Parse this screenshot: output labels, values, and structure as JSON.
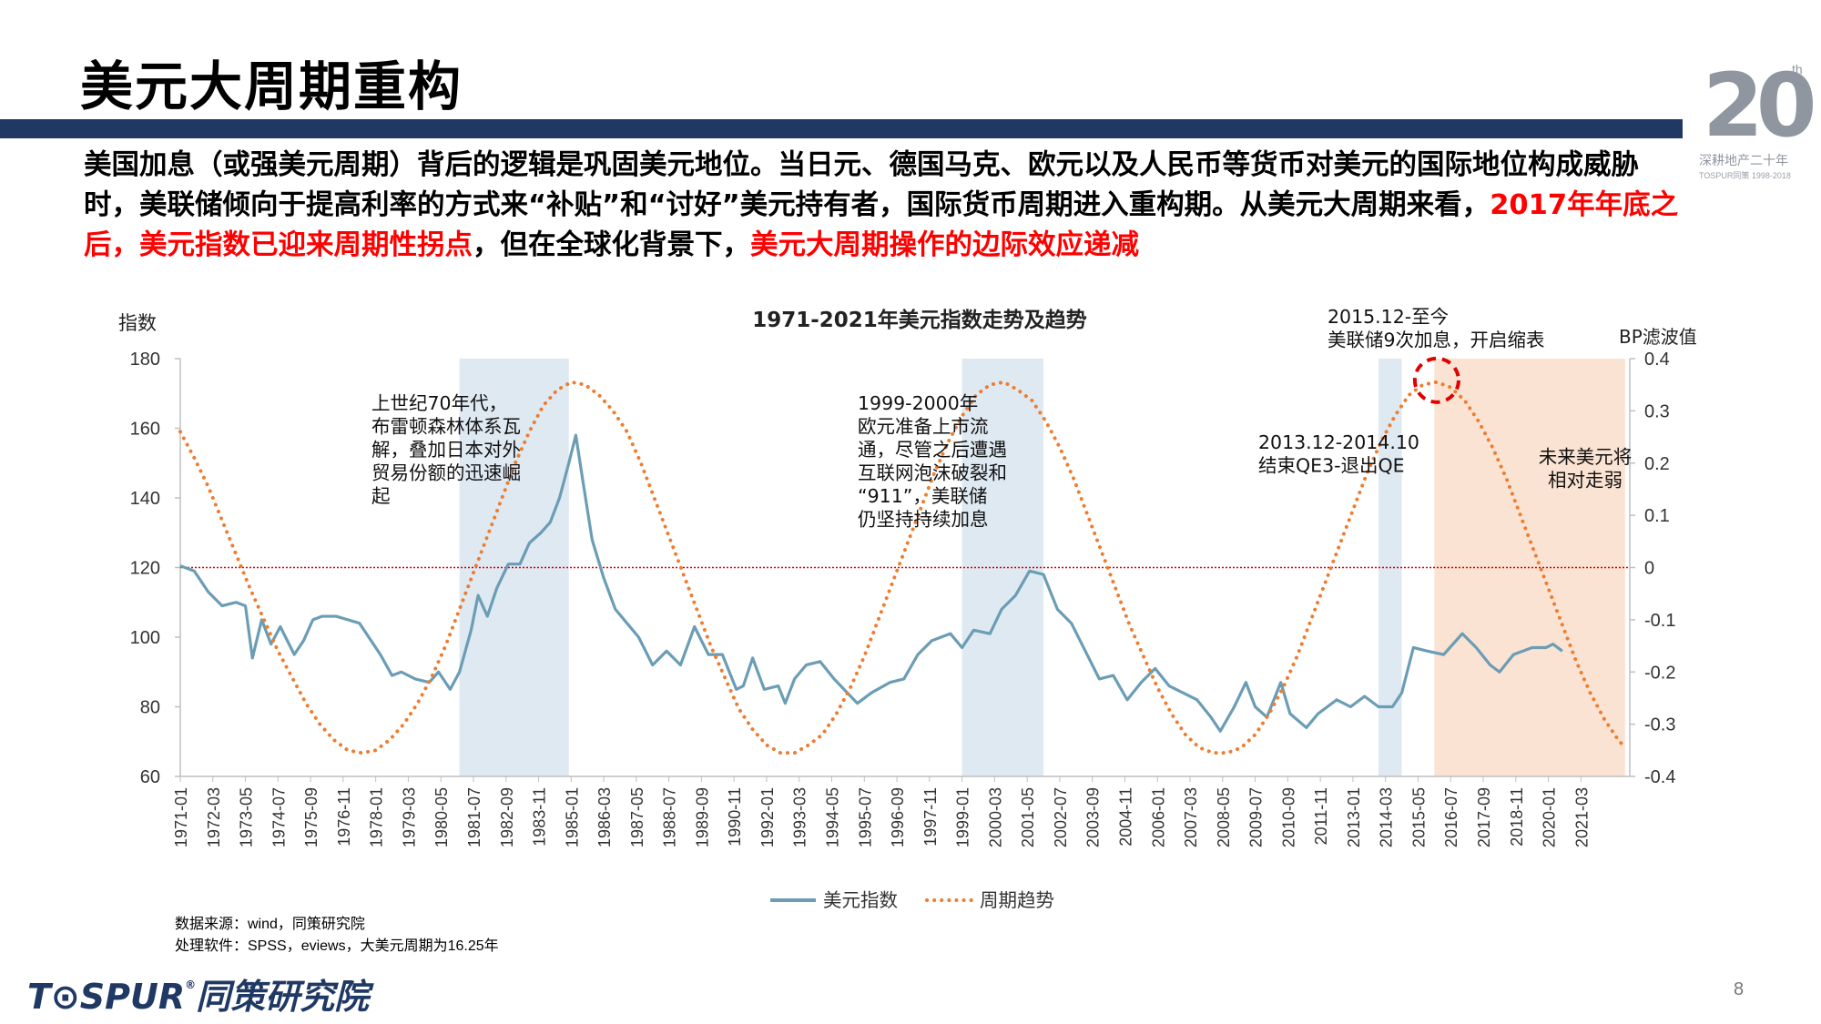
{
  "slide": {
    "title": "美元大周期重构",
    "page_number": "8"
  },
  "badge": {
    "number": "20",
    "suffix": "th",
    "caption": "深耕地产二十年",
    "subcaption": "TOSPUR同策 1998-2018"
  },
  "intro": {
    "part1": "美国加息（或强美元周期）背后的逻辑是巩固美元地位。当日元、德国马克、欧元以及人民币等货币对美元的国际地位构成威胁时，美联储倾向于提高利率的方式来“补贴”和“讨好”美元持有者，国际货币周期进入重构期。从美元大周期来看，",
    "highlight1": "2017年年底之后，美元指数已迎来周期性拐点",
    "part2": "，但在全球化背景下，",
    "highlight2": "美元大周期操作的边际效应递减"
  },
  "source": {
    "line1": "数据来源：wind，同策研究院",
    "line2": "处理软件：SPSS，eviews，大美元周期为16.25年"
  },
  "logo": {
    "brand": "T⊙SPUR",
    "mark": "®",
    "name": "同策研究院"
  },
  "colors": {
    "navy": "#1f3864",
    "highlight": "#ff0000",
    "index_line": "#6b9db5",
    "trend_line": "#ed7d31",
    "shade_blue": "#dfe9f2",
    "shade_peach": "#fbe3d3",
    "baseline": "#e00000"
  },
  "chart_data": {
    "type": "line",
    "title": "1971-2021年美元指数走势及趋势",
    "ylabel": "指数",
    "y2label": "BP滤波值",
    "ylim": [
      60,
      180
    ],
    "yticks": [
      60,
      80,
      100,
      120,
      140,
      160,
      180
    ],
    "y2lim": [
      -0.4,
      0.4
    ],
    "y2ticks": [
      "-0.4",
      "-0.3",
      "-0.2",
      "-0.1",
      "0",
      "0.1",
      "0.2",
      "0.3",
      "0.4"
    ],
    "xlim": [
      "1971-01",
      "2022-12"
    ],
    "xticks": [
      "1971-01",
      "1972-03",
      "1973-05",
      "1974-07",
      "1975-09",
      "1976-11",
      "1978-01",
      "1979-03",
      "1980-05",
      "1981-07",
      "1982-09",
      "1983-11",
      "1985-01",
      "1986-03",
      "1987-05",
      "1988-07",
      "1989-09",
      "1990-11",
      "1992-01",
      "1993-03",
      "1994-05",
      "1995-07",
      "1996-09",
      "1997-11",
      "1999-01",
      "2000-03",
      "2001-05",
      "2002-07",
      "2003-09",
      "2004-11",
      "2006-01",
      "2007-03",
      "2008-05",
      "2009-07",
      "2010-09",
      "2011-11",
      "2013-01",
      "2014-03",
      "2015-05",
      "2016-07",
      "2017-09",
      "2018-11",
      "2020-01",
      "2021-03"
    ],
    "legend_position": "bottom",
    "shaded_periods": [
      {
        "start": "1981-01",
        "end": "1984-12",
        "tone": "blue"
      },
      {
        "start": "1999-01",
        "end": "2001-12",
        "tone": "blue"
      },
      {
        "start": "2013-12",
        "end": "2014-10",
        "tone": "blue"
      },
      {
        "start": "2015-12",
        "end": "2022-10",
        "tone": "peach"
      }
    ],
    "reference_line": {
      "axis": "y",
      "value": 120,
      "style": "dotted"
    },
    "series": [
      {
        "name": "美元指数",
        "axis": "left",
        "style": "solid",
        "points": [
          [
            "1971-01",
            120.5
          ],
          [
            "1971-07",
            119
          ],
          [
            "1972-01",
            113
          ],
          [
            "1972-07",
            109
          ],
          [
            "1973-01",
            110
          ],
          [
            "1973-05",
            109
          ],
          [
            "1973-08",
            94
          ],
          [
            "1973-12",
            105
          ],
          [
            "1974-04",
            98
          ],
          [
            "1974-08",
            103
          ],
          [
            "1975-02",
            95
          ],
          [
            "1975-06",
            99
          ],
          [
            "1975-10",
            105
          ],
          [
            "1976-02",
            106
          ],
          [
            "1976-08",
            106
          ],
          [
            "1977-01",
            105
          ],
          [
            "1977-06",
            104
          ],
          [
            "1977-10",
            100
          ],
          [
            "1978-03",
            95
          ],
          [
            "1978-08",
            89
          ],
          [
            "1978-12",
            90
          ],
          [
            "1979-06",
            88
          ],
          [
            "1979-12",
            87
          ],
          [
            "1980-04",
            90
          ],
          [
            "1980-09",
            85
          ],
          [
            "1981-01",
            90
          ],
          [
            "1981-06",
            102
          ],
          [
            "1981-09",
            112
          ],
          [
            "1982-01",
            106
          ],
          [
            "1982-05",
            114
          ],
          [
            "1982-10",
            121
          ],
          [
            "1983-03",
            121
          ],
          [
            "1983-07",
            127
          ],
          [
            "1983-12",
            130
          ],
          [
            "1984-04",
            133
          ],
          [
            "1984-08",
            140
          ],
          [
            "1984-12",
            150
          ],
          [
            "1985-03",
            158
          ],
          [
            "1985-06",
            145
          ],
          [
            "1985-10",
            128
          ],
          [
            "1986-03",
            117
          ],
          [
            "1986-08",
            108
          ],
          [
            "1987-01",
            104
          ],
          [
            "1987-06",
            100
          ],
          [
            "1987-12",
            92
          ],
          [
            "1988-06",
            96
          ],
          [
            "1988-12",
            92
          ],
          [
            "1989-06",
            103
          ],
          [
            "1989-12",
            95
          ],
          [
            "1990-06",
            95
          ],
          [
            "1990-12",
            85
          ],
          [
            "1991-03",
            86
          ],
          [
            "1991-07",
            94
          ],
          [
            "1991-12",
            85
          ],
          [
            "1992-06",
            86
          ],
          [
            "1992-09",
            81
          ],
          [
            "1993-01",
            88
          ],
          [
            "1993-06",
            92
          ],
          [
            "1993-12",
            93
          ],
          [
            "1994-06",
            88
          ],
          [
            "1995-04",
            81
          ],
          [
            "1995-10",
            84
          ],
          [
            "1996-06",
            87
          ],
          [
            "1996-12",
            88
          ],
          [
            "1997-06",
            95
          ],
          [
            "1997-12",
            99
          ],
          [
            "1998-08",
            101
          ],
          [
            "1999-01",
            97
          ],
          [
            "1999-06",
            102
          ],
          [
            "2000-01",
            101
          ],
          [
            "2000-06",
            108
          ],
          [
            "2000-12",
            112
          ],
          [
            "2001-06",
            119
          ],
          [
            "2001-12",
            118
          ],
          [
            "2002-06",
            108
          ],
          [
            "2002-12",
            104
          ],
          [
            "2003-06",
            96
          ],
          [
            "2003-12",
            88
          ],
          [
            "2004-06",
            89
          ],
          [
            "2004-12",
            82
          ],
          [
            "2005-06",
            87
          ],
          [
            "2005-12",
            91
          ],
          [
            "2006-06",
            86
          ],
          [
            "2006-12",
            84
          ],
          [
            "2007-06",
            82
          ],
          [
            "2007-12",
            77
          ],
          [
            "2008-04",
            73
          ],
          [
            "2008-10",
            80
          ],
          [
            "2009-03",
            87
          ],
          [
            "2009-07",
            80
          ],
          [
            "2009-12",
            77
          ],
          [
            "2010-06",
            87
          ],
          [
            "2010-10",
            78
          ],
          [
            "2011-05",
            74
          ],
          [
            "2011-10",
            78
          ],
          [
            "2012-06",
            82
          ],
          [
            "2012-12",
            80
          ],
          [
            "2013-06",
            83
          ],
          [
            "2013-12",
            80
          ],
          [
            "2014-06",
            80
          ],
          [
            "2014-10",
            84
          ],
          [
            "2015-03",
            97
          ],
          [
            "2015-09",
            96
          ],
          [
            "2016-04",
            95
          ],
          [
            "2016-12",
            101
          ],
          [
            "2017-06",
            97
          ],
          [
            "2017-12",
            92
          ],
          [
            "2018-04",
            90
          ],
          [
            "2018-10",
            95
          ],
          [
            "2019-06",
            97
          ],
          [
            "2019-12",
            97
          ],
          [
            "2020-03",
            98
          ],
          [
            "2020-07",
            96
          ]
        ]
      },
      {
        "name": "周期趋势",
        "axis": "right",
        "style": "dotted",
        "points": [
          [
            "1971-01",
            0.26
          ],
          [
            "1971-07",
            0.21
          ],
          [
            "1972-01",
            0.155
          ],
          [
            "1972-07",
            0.09
          ],
          [
            "1973-01",
            0.025
          ],
          [
            "1973-07",
            -0.04
          ],
          [
            "1974-01",
            -0.1
          ],
          [
            "1974-07",
            -0.16
          ],
          [
            "1975-01",
            -0.21
          ],
          [
            "1975-07",
            -0.26
          ],
          [
            "1976-01",
            -0.3
          ],
          [
            "1976-07",
            -0.33
          ],
          [
            "1977-01",
            -0.35
          ],
          [
            "1977-07",
            -0.355
          ],
          [
            "1978-01",
            -0.35
          ],
          [
            "1978-07",
            -0.33
          ],
          [
            "1979-01",
            -0.3
          ],
          [
            "1979-07",
            -0.26
          ],
          [
            "1980-01",
            -0.21
          ],
          [
            "1980-07",
            -0.15
          ],
          [
            "1981-01",
            -0.08
          ],
          [
            "1981-07",
            -0.01
          ],
          [
            "1982-01",
            0.06
          ],
          [
            "1982-07",
            0.13
          ],
          [
            "1983-01",
            0.2
          ],
          [
            "1983-07",
            0.26
          ],
          [
            "1984-01",
            0.31
          ],
          [
            "1984-07",
            0.34
          ],
          [
            "1985-01",
            0.355
          ],
          [
            "1985-07",
            0.35
          ],
          [
            "1986-01",
            0.33
          ],
          [
            "1986-07",
            0.3
          ],
          [
            "1987-01",
            0.26
          ],
          [
            "1987-07",
            0.2
          ],
          [
            "1988-01",
            0.13
          ],
          [
            "1988-07",
            0.06
          ],
          [
            "1989-01",
            -0.01
          ],
          [
            "1989-07",
            -0.08
          ],
          [
            "1990-01",
            -0.15
          ],
          [
            "1990-07",
            -0.21
          ],
          [
            "1991-01",
            -0.27
          ],
          [
            "1991-07",
            -0.31
          ],
          [
            "1992-01",
            -0.34
          ],
          [
            "1992-07",
            -0.355
          ],
          [
            "1993-01",
            -0.355
          ],
          [
            "1993-07",
            -0.34
          ],
          [
            "1994-01",
            -0.32
          ],
          [
            "1994-07",
            -0.28
          ],
          [
            "1995-01",
            -0.23
          ],
          [
            "1995-07",
            -0.17
          ],
          [
            "1996-01",
            -0.1
          ],
          [
            "1996-07",
            -0.03
          ],
          [
            "1997-01",
            0.04
          ],
          [
            "1997-07",
            0.11
          ],
          [
            "1998-01",
            0.18
          ],
          [
            "1998-07",
            0.24
          ],
          [
            "1999-01",
            0.29
          ],
          [
            "1999-07",
            0.33
          ],
          [
            "2000-01",
            0.35
          ],
          [
            "2000-07",
            0.355
          ],
          [
            "2001-01",
            0.34
          ],
          [
            "2001-07",
            0.32
          ],
          [
            "2002-01",
            0.28
          ],
          [
            "2002-07",
            0.23
          ],
          [
            "2003-01",
            0.17
          ],
          [
            "2003-07",
            0.1
          ],
          [
            "2004-01",
            0.03
          ],
          [
            "2004-07",
            -0.04
          ],
          [
            "2005-01",
            -0.11
          ],
          [
            "2005-07",
            -0.17
          ],
          [
            "2006-01",
            -0.23
          ],
          [
            "2006-07",
            -0.28
          ],
          [
            "2007-01",
            -0.32
          ],
          [
            "2007-07",
            -0.345
          ],
          [
            "2008-01",
            -0.355
          ],
          [
            "2008-07",
            -0.355
          ],
          [
            "2009-01",
            -0.345
          ],
          [
            "2009-07",
            -0.32
          ],
          [
            "2010-01",
            -0.28
          ],
          [
            "2010-07",
            -0.23
          ],
          [
            "2011-01",
            -0.17
          ],
          [
            "2011-07",
            -0.1
          ],
          [
            "2012-01",
            -0.03
          ],
          [
            "2012-07",
            0.04
          ],
          [
            "2013-01",
            0.11
          ],
          [
            "2013-07",
            0.18
          ],
          [
            "2014-01",
            0.24
          ],
          [
            "2014-07",
            0.29
          ],
          [
            "2015-01",
            0.33
          ],
          [
            "2015-07",
            0.35
          ],
          [
            "2016-01",
            0.355
          ],
          [
            "2016-07",
            0.345
          ],
          [
            "2017-01",
            0.32
          ],
          [
            "2017-07",
            0.28
          ],
          [
            "2018-01",
            0.23
          ],
          [
            "2018-07",
            0.17
          ],
          [
            "2019-01",
            0.1
          ],
          [
            "2019-07",
            0.03
          ],
          [
            "2020-01",
            -0.04
          ],
          [
            "2020-07",
            -0.11
          ],
          [
            "2021-01",
            -0.18
          ],
          [
            "2021-07",
            -0.24
          ],
          [
            "2022-01",
            -0.29
          ],
          [
            "2022-07",
            -0.33
          ],
          [
            "2022-10",
            -0.345
          ]
        ]
      }
    ],
    "peak_marker": {
      "date": "2016-01",
      "value": 0.355,
      "axis": "right",
      "style": "red-dashed-circle"
    },
    "annotations": [
      {
        "id": "a1",
        "lines": [
          "上世纪70年代，",
          "布雷顿森林体系瓦",
          "解，叠加日本对外",
          "贸易份额的迅速崛",
          "起"
        ]
      },
      {
        "id": "a2",
        "lines": [
          "1999-2000年",
          "欧元准备上市流",
          "通，尽管之后遭遇",
          "互联网泡沫破裂和",
          "“911”，美联储",
          "仍坚持持续加息"
        ]
      },
      {
        "id": "a3",
        "lines": [
          "2013.12-2014.10",
          "结束QE3-退出QE"
        ]
      },
      {
        "id": "a4",
        "lines": [
          "2015.12-至今",
          "美联储9次加息，开启缩表"
        ]
      },
      {
        "id": "a5",
        "lines": [
          "未来美元将",
          "相对走弱"
        ]
      }
    ]
  }
}
